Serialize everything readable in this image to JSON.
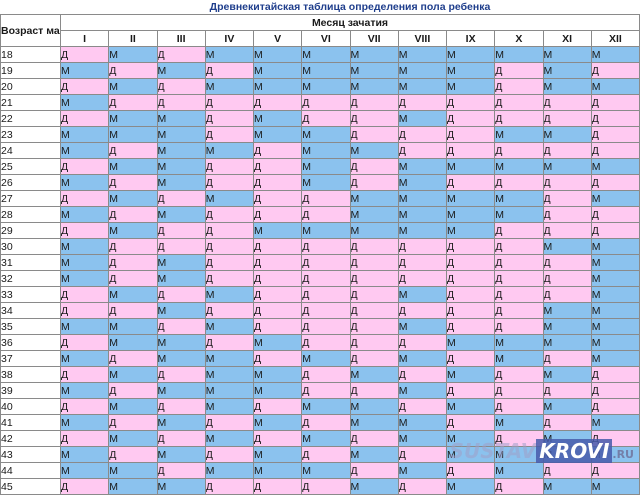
{
  "title": "Древнекитайская таблица определения пола ребенка",
  "corner_label": "Возраст матери",
  "month_header": "Месяц зачатия",
  "months": [
    "I",
    "II",
    "III",
    "IV",
    "V",
    "VI",
    "VII",
    "VIII",
    "IX",
    "X",
    "XI",
    "XII"
  ],
  "rows": [
    {
      "age": "18",
      "cells": [
        "Д",
        "М",
        "Д",
        "М",
        "М",
        "М",
        "М",
        "М",
        "М",
        "М",
        "М",
        "М"
      ]
    },
    {
      "age": "19",
      "cells": [
        "М",
        "Д",
        "М",
        "Д",
        "М",
        "М",
        "М",
        "М",
        "М",
        "Д",
        "М",
        "Д"
      ]
    },
    {
      "age": "20",
      "cells": [
        "Д",
        "М",
        "Д",
        "М",
        "М",
        "М",
        "М",
        "М",
        "М",
        "Д",
        "М",
        "М"
      ]
    },
    {
      "age": "21",
      "cells": [
        "М",
        "Д",
        "Д",
        "Д",
        "Д",
        "Д",
        "Д",
        "Д",
        "Д",
        "Д",
        "Д",
        "Д"
      ]
    },
    {
      "age": "22",
      "cells": [
        "Д",
        "М",
        "М",
        "Д",
        "М",
        "Д",
        "Д",
        "М",
        "Д",
        "Д",
        "Д",
        "Д"
      ]
    },
    {
      "age": "23",
      "cells": [
        "М",
        "М",
        "М",
        "Д",
        "М",
        "М",
        "Д",
        "Д",
        "Д",
        "М",
        "М",
        "Д"
      ]
    },
    {
      "age": "24",
      "cells": [
        "М",
        "Д",
        "М",
        "М",
        "Д",
        "М",
        "М",
        "Д",
        "Д",
        "Д",
        "Д",
        "Д"
      ]
    },
    {
      "age": "25",
      "cells": [
        "Д",
        "М",
        "М",
        "Д",
        "Д",
        "М",
        "Д",
        "М",
        "М",
        "М",
        "М",
        "М"
      ]
    },
    {
      "age": "26",
      "cells": [
        "М",
        "Д",
        "М",
        "Д",
        "Д",
        "М",
        "Д",
        "М",
        "Д",
        "Д",
        "Д",
        "Д"
      ]
    },
    {
      "age": "27",
      "cells": [
        "Д",
        "М",
        "Д",
        "М",
        "Д",
        "Д",
        "М",
        "М",
        "М",
        "М",
        "Д",
        "М"
      ]
    },
    {
      "age": "28",
      "cells": [
        "М",
        "Д",
        "М",
        "Д",
        "Д",
        "Д",
        "М",
        "М",
        "М",
        "М",
        "Д",
        "Д"
      ]
    },
    {
      "age": "29",
      "cells": [
        "Д",
        "М",
        "Д",
        "Д",
        "М",
        "М",
        "М",
        "М",
        "М",
        "Д",
        "Д",
        "Д"
      ]
    },
    {
      "age": "30",
      "cells": [
        "М",
        "Д",
        "Д",
        "Д",
        "Д",
        "Д",
        "Д",
        "Д",
        "Д",
        "Д",
        "М",
        "М"
      ]
    },
    {
      "age": "31",
      "cells": [
        "М",
        "Д",
        "М",
        "Д",
        "Д",
        "Д",
        "Д",
        "Д",
        "Д",
        "Д",
        "Д",
        "М"
      ]
    },
    {
      "age": "32",
      "cells": [
        "М",
        "Д",
        "М",
        "Д",
        "Д",
        "Д",
        "Д",
        "Д",
        "Д",
        "Д",
        "Д",
        "М"
      ]
    },
    {
      "age": "33",
      "cells": [
        "Д",
        "М",
        "Д",
        "М",
        "Д",
        "Д",
        "Д",
        "М",
        "Д",
        "Д",
        "Д",
        "М"
      ]
    },
    {
      "age": "34",
      "cells": [
        "Д",
        "Д",
        "М",
        "Д",
        "Д",
        "Д",
        "Д",
        "Д",
        "Д",
        "Д",
        "М",
        "М"
      ]
    },
    {
      "age": "35",
      "cells": [
        "М",
        "М",
        "Д",
        "М",
        "Д",
        "Д",
        "Д",
        "М",
        "Д",
        "Д",
        "М",
        "М"
      ]
    },
    {
      "age": "36",
      "cells": [
        "Д",
        "М",
        "М",
        "Д",
        "М",
        "Д",
        "Д",
        "Д",
        "М",
        "М",
        "М",
        "М"
      ]
    },
    {
      "age": "37",
      "cells": [
        "М",
        "Д",
        "М",
        "М",
        "Д",
        "М",
        "Д",
        "М",
        "Д",
        "М",
        "Д",
        "М"
      ]
    },
    {
      "age": "38",
      "cells": [
        "Д",
        "М",
        "Д",
        "М",
        "М",
        "Д",
        "М",
        "Д",
        "М",
        "Д",
        "М",
        "Д"
      ]
    },
    {
      "age": "39",
      "cells": [
        "М",
        "Д",
        "М",
        "М",
        "М",
        "Д",
        "Д",
        "М",
        "Д",
        "Д",
        "Д",
        "Д"
      ]
    },
    {
      "age": "40",
      "cells": [
        "Д",
        "М",
        "Д",
        "М",
        "Д",
        "М",
        "М",
        "Д",
        "М",
        "Д",
        "М",
        "Д"
      ]
    },
    {
      "age": "41",
      "cells": [
        "М",
        "Д",
        "М",
        "Д",
        "М",
        "Д",
        "М",
        "М",
        "Д",
        "М",
        "Д",
        "М"
      ]
    },
    {
      "age": "42",
      "cells": [
        "Д",
        "М",
        "Д",
        "М",
        "Д",
        "М",
        "Д",
        "М",
        "М",
        "Д",
        "М",
        "Д"
      ]
    },
    {
      "age": "43",
      "cells": [
        "М",
        "Д",
        "М",
        "Д",
        "М",
        "Д",
        "М",
        "Д",
        "М",
        "М",
        "М",
        "М"
      ]
    },
    {
      "age": "44",
      "cells": [
        "М",
        "М",
        "Д",
        "М",
        "М",
        "М",
        "Д",
        "М",
        "Д",
        "М",
        "Д",
        "Д"
      ]
    },
    {
      "age": "45",
      "cells": [
        "Д",
        "М",
        "М",
        "Д",
        "Д",
        "Д",
        "М",
        "Д",
        "М",
        "Д",
        "М",
        "М"
      ]
    }
  ],
  "colors": {
    "girl": "#ffc9f1",
    "boy": "#8bc2ee",
    "title": "#1f3e8c"
  },
  "watermark": {
    "part1": "SUSTAV",
    "part2": "KROVI",
    ".ru": ".RU"
  }
}
